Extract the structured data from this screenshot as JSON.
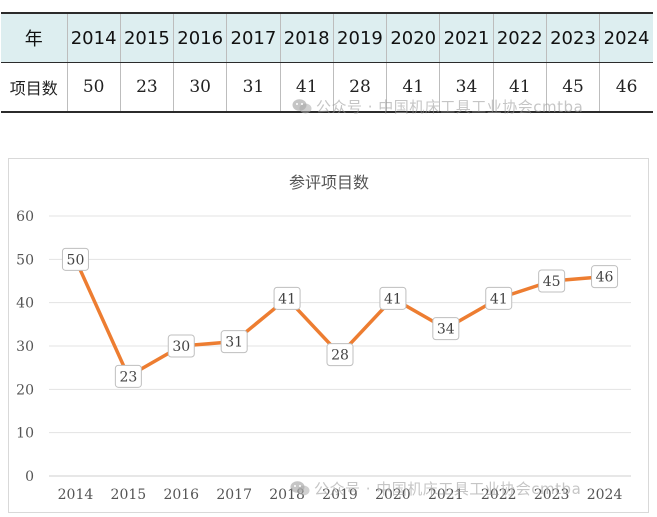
{
  "table": {
    "header_label": "年",
    "row_label": "项目数",
    "years": [
      "2014",
      "2015",
      "2016",
      "2017",
      "2018",
      "2019",
      "2020",
      "2021",
      "2022",
      "2023",
      "2024"
    ],
    "counts": [
      "50",
      "23",
      "30",
      "31",
      "41",
      "28",
      "41",
      "34",
      "41",
      "45",
      "46"
    ]
  },
  "watermark": {
    "text": "公众号 · 中国机床工具工业协会cmtba",
    "icon": "wechat-icon"
  },
  "chart_data": {
    "type": "line",
    "title": "参评项目数",
    "categories": [
      "2014",
      "2015",
      "2016",
      "2017",
      "2018",
      "2019",
      "2020",
      "2021",
      "2022",
      "2023",
      "2024"
    ],
    "values": [
      50,
      23,
      30,
      31,
      41,
      28,
      41,
      34,
      41,
      45,
      46
    ],
    "ylim": [
      0,
      60
    ],
    "yticks": [
      "0",
      "10",
      "20",
      "30",
      "40",
      "50",
      "60"
    ],
    "xlabel": "",
    "ylabel": "",
    "grid": true,
    "legend": "none",
    "line_color": "#ed7d31",
    "label_border_color": "#bfbfbf"
  }
}
